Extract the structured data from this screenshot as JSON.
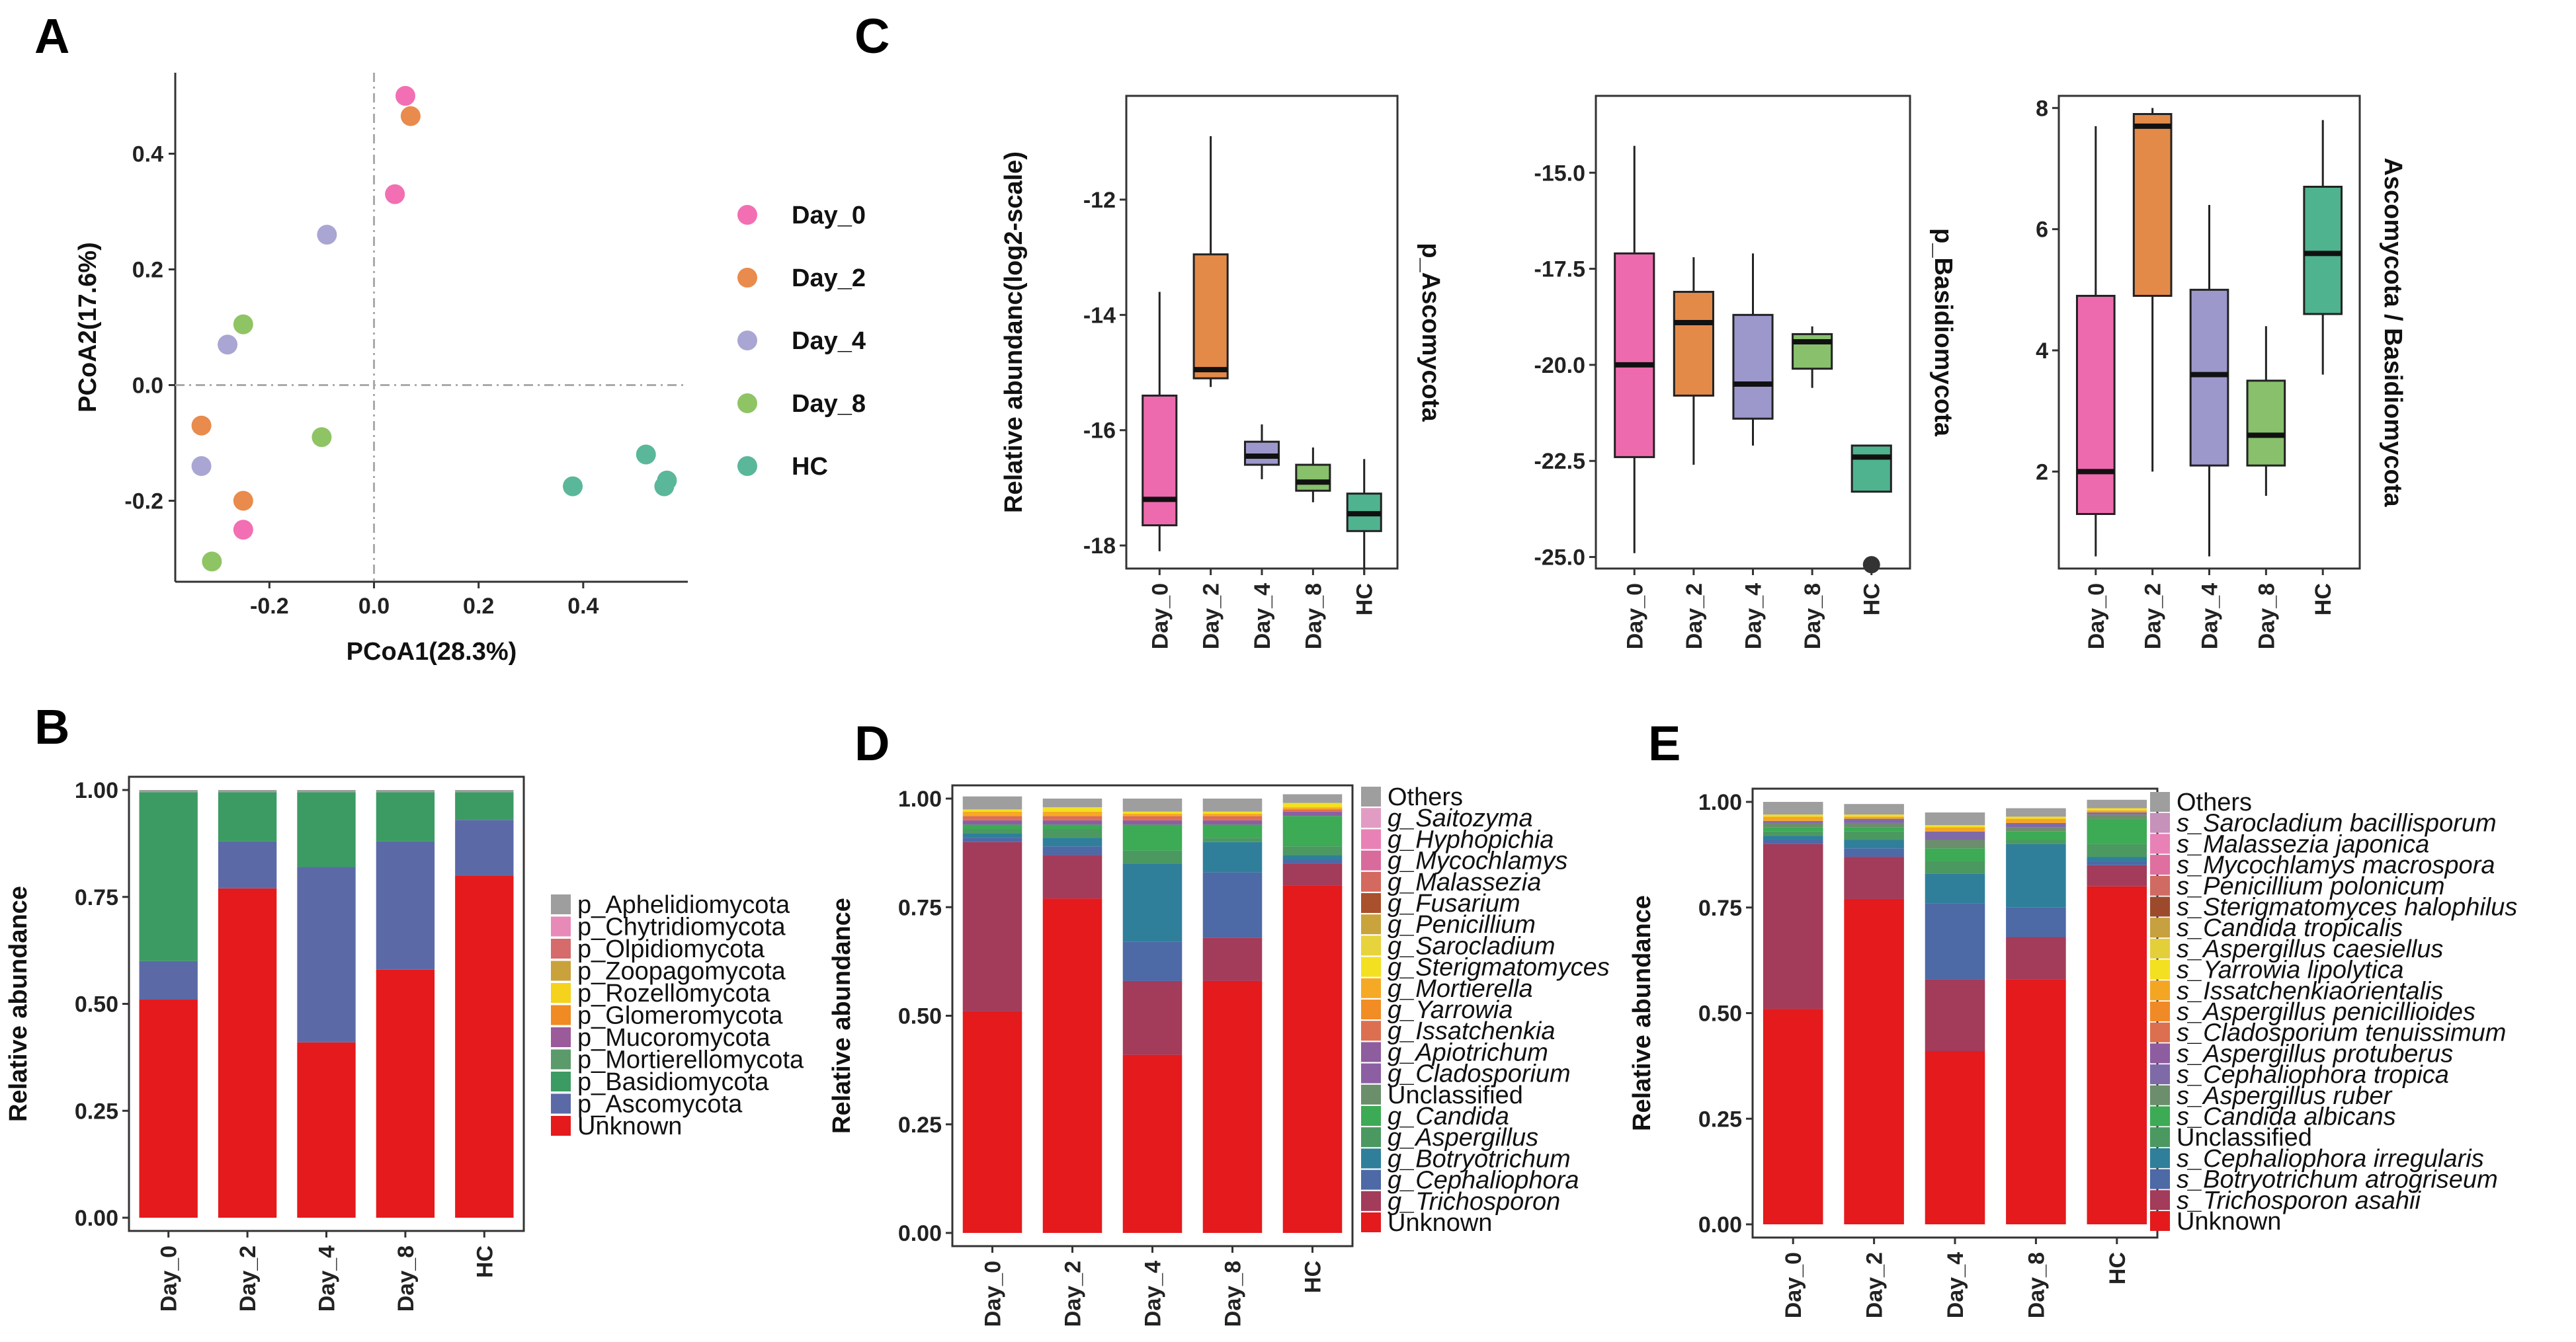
{
  "panel_labels": {
    "a": "A",
    "b": "B",
    "c": "C",
    "d": "D",
    "e": "E"
  },
  "colors": {
    "Day_0": "#f26fb3",
    "Day_2": "#e98b4c",
    "Day_4": "#a9a6d3",
    "Day_8": "#8fc464",
    "HC": "#5ab79a",
    "box_Day_0": "#ee6aae",
    "box_Day_2": "#e38a49",
    "box_Day_4": "#9c98cc",
    "box_Day_8": "#88c06c",
    "box_HC": "#4fb38f"
  },
  "chart_data": [
    {
      "id": "pcoa",
      "type": "scatter",
      "xlabel": "PCoA1(28.3%)",
      "ylabel": "PCoA2(17.6%)",
      "xlim": [
        -0.38,
        0.6
      ],
      "ylim": [
        -0.34,
        0.54
      ],
      "xticks": [
        "-0.2",
        "0.0",
        "0.2",
        "0.4"
      ],
      "xtick_values": [
        -0.2,
        0.0,
        0.2,
        0.4
      ],
      "yticks": [
        "0.4",
        "0.2",
        "0.0",
        "-0.2"
      ],
      "ytick_values": [
        0.4,
        0.2,
        0.0,
        -0.2
      ],
      "legend": [
        "Day_0",
        "Day_2",
        "Day_4",
        "Day_8",
        "HC"
      ],
      "series": [
        {
          "name": "Day_0",
          "points": [
            [
              0.06,
              0.5
            ],
            [
              0.04,
              0.33
            ],
            [
              -0.25,
              -0.25
            ]
          ]
        },
        {
          "name": "Day_2",
          "points": [
            [
              0.07,
              0.465
            ],
            [
              -0.33,
              -0.07
            ],
            [
              -0.25,
              -0.2
            ]
          ]
        },
        {
          "name": "Day_4",
          "points": [
            [
              -0.09,
              0.26
            ],
            [
              -0.28,
              0.07
            ],
            [
              -0.33,
              -0.14
            ]
          ]
        },
        {
          "name": "Day_8",
          "points": [
            [
              -0.25,
              0.105
            ],
            [
              -0.1,
              -0.09
            ],
            [
              -0.31,
              -0.305
            ]
          ]
        },
        {
          "name": "HC",
          "points": [
            [
              0.52,
              -0.12
            ],
            [
              0.38,
              -0.175
            ],
            [
              0.56,
              -0.165
            ],
            [
              0.555,
              -0.175
            ]
          ]
        }
      ]
    },
    {
      "id": "stack_phylum",
      "type": "bar",
      "ylabel": "Relative abundance",
      "categories": [
        "Day_0",
        "Day_2",
        "Day_4",
        "Day_8",
        "HC"
      ],
      "yticks": [
        "0.00",
        "0.25",
        "0.50",
        "0.75",
        "1.00"
      ],
      "ylim": [
        0,
        1
      ],
      "legend": [
        "p_Aphelidiomycota",
        "p_Chytridiomycota",
        "p_Olpidiomycota",
        "p_Zoopagomycota",
        "p_Rozellomycota",
        "p_Glomeromycota",
        "p_Mucoromycota",
        "p_Mortierellomycota",
        "p_Basidiomycota",
        "p_Ascomycota",
        "Unknown"
      ],
      "legend_colors": [
        "#9e9e9e",
        "#e88ab8",
        "#d56b6b",
        "#c9a23b",
        "#f5d21c",
        "#f08a22",
        "#9b5a9a",
        "#5b9a6a",
        "#3c9b63",
        "#5b6aa6",
        "#e41a1c"
      ],
      "series": [
        {
          "name": "Unknown",
          "color": "#e41a1c",
          "values": [
            0.51,
            0.77,
            0.41,
            0.58,
            0.8
          ]
        },
        {
          "name": "p_Ascomycota",
          "color": "#5b6aa6",
          "values": [
            0.09,
            0.11,
            0.41,
            0.3,
            0.13
          ]
        },
        {
          "name": "p_Basidiomycota",
          "color": "#3c9b63",
          "values": [
            0.395,
            0.115,
            0.175,
            0.115,
            0.065
          ]
        },
        {
          "name": "other",
          "color": "#9e9e9e",
          "values": [
            0.005,
            0.005,
            0.005,
            0.005,
            0.005
          ]
        }
      ]
    },
    {
      "id": "box_asco",
      "type": "box",
      "ylabel": "Relative abundanc(log2-scale)",
      "right_label": "p_Ascomycota",
      "categories": [
        "Day_0",
        "Day_2",
        "Day_4",
        "Day_8",
        "HC"
      ],
      "ylim": [
        -18.4,
        -10.2
      ],
      "yticks": [
        "-12",
        "-14",
        "-16",
        "-18"
      ],
      "ytick_values": [
        -12,
        -14,
        -16,
        -18
      ],
      "boxes": [
        {
          "min": -18.1,
          "q1": -17.65,
          "median": -17.2,
          "q3": -15.4,
          "max": -13.6
        },
        {
          "min": -15.25,
          "q1": -15.1,
          "median": -14.95,
          "q3": -12.95,
          "max": -10.9
        },
        {
          "min": -16.85,
          "q1": -16.6,
          "median": -16.45,
          "q3": -16.2,
          "max": -15.9
        },
        {
          "min": -17.25,
          "q1": -17.05,
          "median": -16.9,
          "q3": -16.6,
          "max": -16.3
        },
        {
          "min": -18.5,
          "q1": -17.75,
          "median": -17.45,
          "q3": -17.1,
          "max": -16.5
        }
      ]
    },
    {
      "id": "box_basidio",
      "type": "box",
      "ylabel": "",
      "right_label": "p_Basidiomycota",
      "categories": [
        "Day_0",
        "Day_2",
        "Day_4",
        "Day_8",
        "HC"
      ],
      "ylim": [
        -25.3,
        -13.0
      ],
      "yticks": [
        "-15.0",
        "-17.5",
        "-20.0",
        "-22.5",
        "-25.0"
      ],
      "ytick_values": [
        -15,
        -17.5,
        -20,
        -22.5,
        -25
      ],
      "boxes": [
        {
          "min": -24.9,
          "q1": -22.4,
          "median": -20.0,
          "q3": -17.1,
          "max": -14.3
        },
        {
          "min": -22.6,
          "q1": -20.8,
          "median": -18.9,
          "q3": -18.1,
          "max": -17.2
        },
        {
          "min": -22.1,
          "q1": -21.4,
          "median": -20.5,
          "q3": -18.7,
          "max": -17.1
        },
        {
          "min": -20.6,
          "q1": -20.1,
          "median": -19.4,
          "q3": -19.2,
          "max": -19.0
        },
        {
          "min": -23.3,
          "q1": -23.3,
          "median": -22.4,
          "q3": -22.1,
          "max": -22.1,
          "outlier": -25.2
        }
      ]
    },
    {
      "id": "box_ratio",
      "type": "box",
      "ylabel": "",
      "right_label": "Ascomycota / Basidiomycota",
      "categories": [
        "Day_0",
        "Day_2",
        "Day_4",
        "Day_8",
        "HC"
      ],
      "ylim": [
        0.4,
        8.2
      ],
      "yticks": [
        "8",
        "6",
        "4",
        "2"
      ],
      "ytick_values": [
        8,
        6,
        4,
        2
      ],
      "boxes": [
        {
          "min": 0.6,
          "q1": 1.3,
          "median": 2.0,
          "q3": 4.9,
          "max": 7.7
        },
        {
          "min": 2.0,
          "q1": 4.9,
          "median": 7.7,
          "q3": 7.9,
          "max": 8.0
        },
        {
          "min": 0.6,
          "q1": 2.1,
          "median": 3.6,
          "q3": 5.0,
          "max": 6.4
        },
        {
          "min": 1.6,
          "q1": 2.1,
          "median": 2.6,
          "q3": 3.5,
          "max": 4.4
        },
        {
          "min": 3.6,
          "q1": 4.6,
          "median": 5.6,
          "q3": 6.7,
          "max": 7.8
        }
      ]
    },
    {
      "id": "stack_genus",
      "type": "bar",
      "ylabel": "Relative abundance",
      "categories": [
        "Day_0",
        "Day_2",
        "Day_4",
        "Day_8",
        "HC"
      ],
      "yticks": [
        "0.00",
        "0.25",
        "0.50",
        "0.75",
        "1.00"
      ],
      "ylim": [
        0,
        1
      ],
      "legend": [
        "Others",
        "g_Saitozyma",
        "g_Hyphopichia",
        "g_Mycochlamys",
        "g_Malassezia",
        "g_Fusarium",
        "g_Penicillium",
        "g_Sarocladium",
        "g_Sterigmatomyces",
        "g_Mortierella",
        "g_Yarrowia",
        "g_Issatchenkia",
        "g_Apiotrichum",
        "g_Cladosporium",
        "Unclassified",
        "g_Candida",
        "g_Aspergillus",
        "g_Botryotrichum",
        "g_Cephaliophora",
        "g_Trichosporon",
        "Unknown"
      ],
      "legend_colors": [
        "#9e9e9e",
        "#e29cc4",
        "#e882b6",
        "#d96b9c",
        "#d4695f",
        "#a9502d",
        "#c9a43d",
        "#e7d33b",
        "#f3e021",
        "#f6a924",
        "#f28c25",
        "#dd6f51",
        "#8d5d9e",
        "#8c5fa3",
        "#6a8f6a",
        "#3daa55",
        "#4b9960",
        "#2f7f9b",
        "#4d69a6",
        "#a33b5a",
        "#e41a1c"
      ],
      "series": [
        {
          "name": "Unknown",
          "color": "#e41a1c",
          "values": [
            0.51,
            0.77,
            0.41,
            0.58,
            0.8
          ]
        },
        {
          "name": "g_Trichosporon",
          "color": "#a33b5a",
          "values": [
            0.39,
            0.1,
            0.17,
            0.1,
            0.05
          ]
        },
        {
          "name": "g_Cephaliophora",
          "color": "#4d69a6",
          "values": [
            0.01,
            0.02,
            0.09,
            0.15,
            0.01
          ]
        },
        {
          "name": "g_Botryotrichum",
          "color": "#2f7f9b",
          "values": [
            0.01,
            0.02,
            0.18,
            0.07,
            0.01
          ]
        },
        {
          "name": "g_Aspergillus",
          "color": "#4b9960",
          "values": [
            0.01,
            0.02,
            0.03,
            0.01,
            0.02
          ]
        },
        {
          "name": "g_Candida",
          "color": "#3daa55",
          "values": [
            0.01,
            0.01,
            0.06,
            0.03,
            0.07
          ]
        },
        {
          "name": "g_Cladosporium",
          "color": "#8c5fa3",
          "values": [
            0.01,
            0.01,
            0.01,
            0.01,
            0.01
          ]
        },
        {
          "name": "g_Issatchenkia",
          "color": "#dd6f51",
          "values": [
            0.01,
            0.01,
            0.01,
            0.01,
            0.005
          ]
        },
        {
          "name": "g_Mortierella",
          "color": "#f6a924",
          "values": [
            0.01,
            0.01,
            0.005,
            0.005,
            0.005
          ]
        },
        {
          "name": "g_Sterigmatomyces",
          "color": "#f3e021",
          "values": [
            0.005,
            0.01,
            0.005,
            0.005,
            0.01
          ]
        },
        {
          "name": "Others",
          "color": "#9e9e9e",
          "values": [
            0.03,
            0.02,
            0.03,
            0.03,
            0.02
          ]
        }
      ]
    },
    {
      "id": "stack_species",
      "type": "bar",
      "ylabel": "Relative abundance",
      "categories": [
        "Day_0",
        "Day_2",
        "Day_4",
        "Day_8",
        "HC"
      ],
      "yticks": [
        "0.00",
        "0.25",
        "0.50",
        "0.75",
        "1.00"
      ],
      "ylim": [
        0,
        1
      ],
      "legend": [
        "Others",
        "s_Sarocladium bacillisporum",
        "s_Malassezia japonica",
        "s_Mycochlamys macrospora",
        "s_Penicillium polonicum",
        "s_Sterigmatomyces halophilus",
        "s_Candida tropicalis",
        "s_Aspergillus caesiellus",
        "s_Yarrowia lipolytica",
        "s_Issatchenkiaorientalis",
        "s_Aspergillus penicillioides",
        "s_Cladosporium tenuissimum",
        "s_Aspergillus protuberus",
        "s_Cephaliophora tropica",
        "s_Aspergillus ruber",
        "s_Candida albicans",
        "Unclassified",
        "s_Cephaliophora irregularis",
        "s_Botryotrichum atrogriseum",
        "s_Trichosporon asahii",
        "Unknown"
      ],
      "legend_colors": [
        "#9e9e9e",
        "#c692b9",
        "#e882b6",
        "#de6f9f",
        "#cf6b63",
        "#9d4a2c",
        "#c7a03f",
        "#e3cf3a",
        "#f3e021",
        "#f4a623",
        "#f08a26",
        "#dc6f50",
        "#8e5da0",
        "#7f6aa8",
        "#6d8e6c",
        "#3daa55",
        "#4b9960",
        "#2f7f9b",
        "#4d69a6",
        "#a33b5a",
        "#e41a1c"
      ],
      "series": [
        {
          "name": "Unknown",
          "color": "#e41a1c",
          "values": [
            0.51,
            0.77,
            0.41,
            0.58,
            0.8
          ]
        },
        {
          "name": "s_Trichosporon asahii",
          "color": "#a33b5a",
          "values": [
            0.39,
            0.1,
            0.17,
            0.1,
            0.05
          ]
        },
        {
          "name": "s_Botryotrichum atrogriseum",
          "color": "#4d69a6",
          "values": [
            0.01,
            0.02,
            0.18,
            0.07,
            0.01
          ]
        },
        {
          "name": "s_Cephaliophora irregularis",
          "color": "#2f7f9b",
          "values": [
            0.01,
            0.02,
            0.07,
            0.15,
            0.01
          ]
        },
        {
          "name": "Unclassified",
          "color": "#4b9960",
          "values": [
            0.01,
            0.02,
            0.03,
            0.01,
            0.03
          ]
        },
        {
          "name": "s_Candida albicans",
          "color": "#3daa55",
          "values": [
            0.01,
            0.01,
            0.03,
            0.02,
            0.06
          ]
        },
        {
          "name": "s_Aspergillus ruber",
          "color": "#6d8e6c",
          "values": [
            0.01,
            0.01,
            0.02,
            0.01,
            0.01
          ]
        },
        {
          "name": "s_Cephaliophora tropica",
          "color": "#7f6aa8",
          "values": [
            0.005,
            0.01,
            0.02,
            0.01,
            0.005
          ]
        },
        {
          "name": "s_Issatchenkiaorientalis",
          "color": "#f4a623",
          "values": [
            0.01,
            0.005,
            0.01,
            0.01,
            0.005
          ]
        },
        {
          "name": "s_Yarrowia lipolytica",
          "color": "#f3e021",
          "values": [
            0.005,
            0.005,
            0.005,
            0.005,
            0.005
          ]
        },
        {
          "name": "Others",
          "color": "#9e9e9e",
          "values": [
            0.03,
            0.025,
            0.03,
            0.02,
            0.02
          ]
        }
      ]
    }
  ]
}
